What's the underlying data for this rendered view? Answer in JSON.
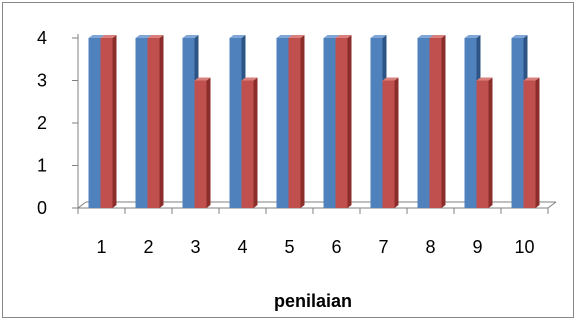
{
  "chart_data": {
    "type": "bar",
    "categories": [
      "1",
      "2",
      "3",
      "4",
      "5",
      "6",
      "7",
      "8",
      "9",
      "10"
    ],
    "series": [
      {
        "values": [
          4,
          4,
          4,
          4,
          4,
          4,
          4,
          4,
          4,
          4
        ]
      },
      {
        "values": [
          4,
          4,
          3,
          3,
          4,
          4,
          3,
          4,
          3,
          3
        ]
      }
    ],
    "y_ticks": [
      "0",
      "1",
      "2",
      "3",
      "4"
    ],
    "xlabel": "penilaian",
    "ylabel": "",
    "ylim": [
      0,
      4
    ],
    "grid": false,
    "legend": "none",
    "colors": {
      "series_front": [
        "#4f81bd",
        "#c0504d"
      ],
      "series_side": [
        "#2c5585",
        "#8b2e2b"
      ],
      "series_top": [
        "#7fa6d6",
        "#d9807d"
      ],
      "axis": "#808080"
    }
  }
}
